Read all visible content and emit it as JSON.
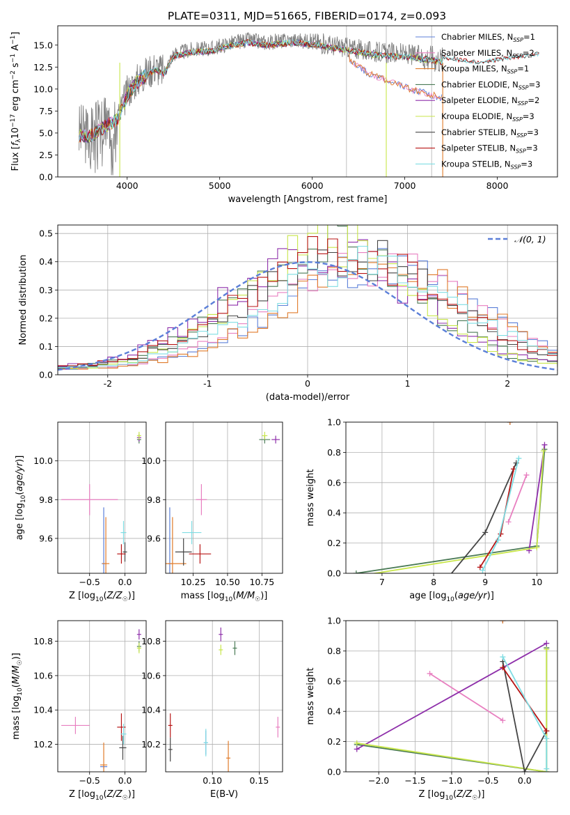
{
  "figure_title": "PLATE=0311, MJD=51665, FIBERID=0174, z=0.093",
  "colors": {
    "chabrier_miles": "#5b7fd8",
    "salpeter_miles": "#e87fc0",
    "kroupa_miles": "#e07b2a",
    "chabrier_elodie": "#4a7a55",
    "salpeter_elodie": "#8e2faa",
    "kroupa_elodie": "#c8e64a",
    "chabrier_stelib": "#444444",
    "salpeter_stelib": "#b81414",
    "kroupa_stelib": "#7fdde3",
    "data_spectrum": "#808080",
    "gaussian": "#5b7fd8"
  },
  "chart_data": [
    {
      "id": "spectrum",
      "type": "line",
      "xlabel": "wavelength [Angstrom, rest frame]",
      "ylabel": "Flux [f_λ10^-17 erg cm^-2 s^-1 A^-1]",
      "xlim": [
        3250,
        8650
      ],
      "ylim": [
        0,
        17.2
      ],
      "xticks": [
        4000,
        5000,
        6000,
        7000,
        8000
      ],
      "yticks": [
        0.0,
        2.5,
        5.0,
        7.5,
        10.0,
        12.5,
        15.0
      ],
      "ytick_labels": [
        "0.0",
        "2.5",
        "5.0",
        "7.5",
        "10.0",
        "12.5",
        "15.0"
      ],
      "grid": false,
      "legend_position": "top-right",
      "legend": [
        {
          "key": "chabrier_miles",
          "label": "Chabrier MILES, N",
          "sub": "SSP",
          "suffix": "=1"
        },
        {
          "key": "salpeter_miles",
          "label": "Salpeter MILES, N",
          "sub": "SSP",
          "suffix": "=2"
        },
        {
          "key": "kroupa_miles",
          "label": "Kroupa MILES, N",
          "sub": "SSP",
          "suffix": "=1"
        },
        {
          "key": "chabrier_elodie",
          "label": "Chabrier ELODIE, N",
          "sub": "SSP",
          "suffix": "=3"
        },
        {
          "key": "salpeter_elodie",
          "label": "Salpeter ELODIE, N",
          "sub": "SSP",
          "suffix": "=2"
        },
        {
          "key": "kroupa_elodie",
          "label": "Kroupa ELODIE, N",
          "sub": "SSP",
          "suffix": "=3"
        },
        {
          "key": "chabrier_stelib",
          "label": "Chabrier STELIB, N",
          "sub": "SSP",
          "suffix": "=3"
        },
        {
          "key": "salpeter_stelib",
          "label": "Salpeter STELIB, N",
          "sub": "SSP",
          "suffix": "=3"
        },
        {
          "key": "kroupa_stelib",
          "label": "Kroupa STELIB, N",
          "sub": "SSP",
          "suffix": "=3"
        }
      ],
      "continuum_knots": {
        "x": [
          3480,
          3600,
          3700,
          3800,
          3900,
          4000,
          4100,
          4200,
          4300,
          4400,
          4500,
          4700,
          4900,
          5100,
          5300,
          5500,
          5800,
          6000,
          6200,
          6400,
          6600,
          6800,
          7000,
          7200,
          7400
        ],
        "y": [
          5.0,
          4.9,
          5.6,
          6.3,
          6.8,
          9.6,
          11.0,
          11.8,
          12.5,
          12.0,
          14.0,
          14.5,
          14.6,
          15.2,
          15.6,
          15.3,
          15.6,
          15.4,
          15.0,
          14.7,
          14.3,
          14.1,
          14.0,
          13.7,
          13.4
        ]
      },
      "miles_red_knots": {
        "x": [
          6400,
          6600,
          6800,
          7000,
          7200,
          7400
        ],
        "y": [
          13.4,
          11.8,
          11.0,
          10.2,
          9.6,
          9.0
        ]
      },
      "data_range": [
        3480,
        7410
      ],
      "stelib_range": [
        3480,
        8450
      ],
      "vlines_x": [
        6370,
        6800,
        7290
      ]
    },
    {
      "id": "residuals",
      "type": "step-histogram",
      "xlabel": "(data-model)/error",
      "ylabel": "Normed distribution",
      "xlim": [
        -2.5,
        2.5
      ],
      "ylim": [
        0,
        0.53
      ],
      "xticks": [
        -2,
        -1,
        0,
        1,
        2
      ],
      "yticks": [
        0.0,
        0.1,
        0.2,
        0.3,
        0.4,
        0.5
      ],
      "ytick_labels": [
        "0.0",
        "0.1",
        "0.2",
        "0.3",
        "0.4",
        "0.5"
      ],
      "grid": true,
      "legend_position": "top-right",
      "legend": [
        {
          "label": "𝒩(0, 1)"
        }
      ],
      "gaussian": {
        "mu": 0,
        "sigma": 1
      },
      "hist_params": [
        {
          "key": "chabrier_miles",
          "mu": 0.7,
          "sigma": 0.98,
          "amp": 0.37,
          "seed": 11
        },
        {
          "key": "salpeter_miles",
          "mu": 0.65,
          "sigma": 0.98,
          "amp": 0.37,
          "seed": 12
        },
        {
          "key": "kroupa_miles",
          "mu": 0.72,
          "sigma": 0.98,
          "amp": 0.36,
          "seed": 13
        },
        {
          "key": "chabrier_elodie",
          "mu": 0.2,
          "sigma": 0.9,
          "amp": 0.43,
          "seed": 14
        },
        {
          "key": "salpeter_elodie",
          "mu": 0.15,
          "sigma": 0.95,
          "amp": 0.42,
          "seed": 15
        },
        {
          "key": "kroupa_elodie",
          "mu": 0.25,
          "sigma": 0.85,
          "amp": 0.45,
          "seed": 16
        },
        {
          "key": "chabrier_stelib",
          "mu": 0.4,
          "sigma": 1.0,
          "amp": 0.4,
          "seed": 17
        },
        {
          "key": "salpeter_stelib",
          "mu": 0.35,
          "sigma": 1.0,
          "amp": 0.41,
          "seed": 18
        },
        {
          "key": "kroupa_stelib",
          "mu": 0.5,
          "sigma": 0.98,
          "amp": 0.38,
          "seed": 19
        }
      ],
      "bin_width": 0.1
    },
    {
      "id": "age_vs_Z",
      "type": "errorbar",
      "xlabel": "Z [log10(Z/Z☉)]",
      "ylabel": "age [log10(age/yr)]",
      "xlim": [
        -0.95,
        0.3
      ],
      "ylim": [
        9.42,
        10.2
      ],
      "xticks": [
        -0.5,
        0.0
      ],
      "xtick_labels": [
        "−0.5",
        "0.0"
      ],
      "yticks": [
        9.6,
        9.8,
        10.0
      ],
      "ytick_labels": [
        "9.6",
        "9.8",
        "10.0"
      ],
      "grid": true,
      "points": [
        {
          "key": "chabrier_miles",
          "x": -0.3,
          "y": 9.47,
          "xerr": 0.0,
          "yerr": 0.29
        },
        {
          "key": "salpeter_miles",
          "x": -0.5,
          "y": 9.8,
          "xerr": 0.4,
          "yerr": 0.08
        },
        {
          "key": "kroupa_miles",
          "x": -0.27,
          "y": 9.47,
          "xerr": 0.05,
          "yerr": 0.24
        },
        {
          "key": "chabrier_elodie",
          "x": 0.2,
          "y": 10.11,
          "xerr": 0.02,
          "yerr": 0.02
        },
        {
          "key": "salpeter_elodie",
          "x": 0.2,
          "y": 10.12,
          "xerr": 0.02,
          "yerr": 0.02
        },
        {
          "key": "kroupa_elodie",
          "x": 0.2,
          "y": 10.13,
          "xerr": 0.02,
          "yerr": 0.02
        },
        {
          "key": "chabrier_stelib",
          "x": 0.0,
          "y": 9.53,
          "xerr": 0.03,
          "yerr": 0.05
        },
        {
          "key": "salpeter_stelib",
          "x": -0.05,
          "y": 9.52,
          "xerr": 0.06,
          "yerr": 0.05
        },
        {
          "key": "kroupa_stelib",
          "x": -0.02,
          "y": 9.63,
          "xerr": 0.04,
          "yerr": 0.06
        }
      ]
    },
    {
      "id": "age_vs_mass",
      "type": "errorbar",
      "xlabel": "mass [log10(M/M☉)]",
      "ylabel": "",
      "xlim": [
        10.05,
        10.9
      ],
      "ylim": [
        9.42,
        10.2
      ],
      "xticks": [
        10.25,
        10.5,
        10.75
      ],
      "xtick_labels": [
        "10.25",
        "10.50",
        "10.75"
      ],
      "yticks": [
        9.6,
        9.8,
        10.0
      ],
      "ytick_labels": [
        "9.6",
        "9.8",
        "10.0"
      ],
      "grid": true,
      "points": [
        {
          "key": "chabrier_miles",
          "x": 10.08,
          "y": 9.47,
          "xerr": 0.0,
          "yerr": 0.29
        },
        {
          "key": "salpeter_miles",
          "x": 10.31,
          "y": 9.8,
          "xerr": 0.04,
          "yerr": 0.08
        },
        {
          "key": "kroupa_miles",
          "x": 10.1,
          "y": 9.47,
          "xerr": 0.1,
          "yerr": 0.24
        },
        {
          "key": "chabrier_elodie",
          "x": 10.77,
          "y": 10.11,
          "xerr": 0.04,
          "yerr": 0.02
        },
        {
          "key": "salpeter_elodie",
          "x": 10.85,
          "y": 10.11,
          "xerr": 0.03,
          "yerr": 0.02
        },
        {
          "key": "kroupa_elodie",
          "x": 10.77,
          "y": 10.13,
          "xerr": 0.02,
          "yerr": 0.02
        },
        {
          "key": "chabrier_stelib",
          "x": 10.18,
          "y": 9.53,
          "xerr": 0.06,
          "yerr": 0.07
        },
        {
          "key": "salpeter_stelib",
          "x": 10.3,
          "y": 9.52,
          "xerr": 0.08,
          "yerr": 0.05
        },
        {
          "key": "kroupa_stelib",
          "x": 10.24,
          "y": 9.63,
          "xerr": 0.07,
          "yerr": 0.06
        }
      ]
    },
    {
      "id": "massweight_vs_age",
      "type": "line",
      "xlabel": "age [log10(age/yr)]",
      "ylabel": "mass weight",
      "xlim": [
        6.3,
        10.4
      ],
      "ylim": [
        0,
        1
      ],
      "xticks": [
        7,
        8,
        9,
        10
      ],
      "xtick_labels": [
        "7",
        "8",
        "9",
        "10"
      ],
      "yticks": [
        0.0,
        0.2,
        0.4,
        0.6,
        0.8,
        1.0
      ],
      "ytick_labels": [
        "0.0",
        "0.2",
        "0.4",
        "0.6",
        "0.8",
        "1.0"
      ],
      "grid": true,
      "series": [
        {
          "key": "chabrier_miles",
          "x": [
            9.48
          ],
          "y": [
            1.0
          ]
        },
        {
          "key": "salpeter_miles",
          "x": [
            9.45,
            9.8
          ],
          "y": [
            0.34,
            0.65
          ]
        },
        {
          "key": "kroupa_miles",
          "x": [
            9.48
          ],
          "y": [
            1.0
          ]
        },
        {
          "key": "chabrier_elodie",
          "x": [
            6.5,
            10.0,
            10.15
          ],
          "y": [
            0.0,
            0.18,
            0.82
          ]
        },
        {
          "key": "salpeter_elodie",
          "x": [
            9.85,
            10.15
          ],
          "y": [
            0.15,
            0.85
          ]
        },
        {
          "key": "kroupa_elodie",
          "x": [
            6.5,
            10.0,
            10.13
          ],
          "y": [
            -0.02,
            0.17,
            0.81
          ]
        },
        {
          "key": "chabrier_stelib",
          "x": [
            8.3,
            9.0,
            9.6
          ],
          "y": [
            -0.02,
            0.27,
            0.73
          ]
        },
        {
          "key": "salpeter_stelib",
          "x": [
            8.9,
            9.3,
            9.55
          ],
          "y": [
            0.04,
            0.26,
            0.69
          ]
        },
        {
          "key": "kroupa_stelib",
          "x": [
            8.95,
            9.25,
            9.65
          ],
          "y": [
            0.02,
            0.22,
            0.76
          ]
        }
      ]
    },
    {
      "id": "mass_vs_Z",
      "type": "errorbar",
      "xlabel": "Z [log10(Z/Z☉)]",
      "ylabel": "mass [log10(M/M☉)]",
      "xlim": [
        -0.95,
        0.3
      ],
      "ylim": [
        10.04,
        10.92
      ],
      "xticks": [
        -0.5,
        0.0
      ],
      "xtick_labels": [
        "−0.5",
        "0.0"
      ],
      "yticks": [
        10.2,
        10.4,
        10.6,
        10.8
      ],
      "ytick_labels": [
        "10.2",
        "10.4",
        "10.6",
        "10.8"
      ],
      "grid": true,
      "points": [
        {
          "key": "chabrier_miles",
          "x": -0.3,
          "y": 10.07,
          "xerr": 0.05,
          "yerr": 0.0
        },
        {
          "key": "salpeter_miles",
          "x": -0.7,
          "y": 10.31,
          "xerr": 0.2,
          "yerr": 0.05
        },
        {
          "key": "kroupa_miles",
          "x": -0.3,
          "y": 10.08,
          "xerr": 0.05,
          "yerr": 0.13
        },
        {
          "key": "chabrier_elodie",
          "x": 0.2,
          "y": 10.77,
          "xerr": 0.02,
          "yerr": 0.03
        },
        {
          "key": "salpeter_elodie",
          "x": 0.2,
          "y": 10.84,
          "xerr": 0.02,
          "yerr": 0.03
        },
        {
          "key": "kroupa_elodie",
          "x": 0.2,
          "y": 10.76,
          "xerr": 0.02,
          "yerr": 0.03
        },
        {
          "key": "chabrier_stelib",
          "x": -0.03,
          "y": 10.18,
          "xerr": 0.05,
          "yerr": 0.07
        },
        {
          "key": "salpeter_stelib",
          "x": -0.05,
          "y": 10.3,
          "xerr": 0.06,
          "yerr": 0.08
        },
        {
          "key": "kroupa_stelib",
          "x": -0.02,
          "y": 10.26,
          "xerr": 0.04,
          "yerr": 0.06
        }
      ]
    },
    {
      "id": "mass_vs_ebv",
      "type": "errorbar",
      "xlabel": "E(B-V)",
      "ylabel": "",
      "xlim": [
        0.05,
        0.175
      ],
      "ylim": [
        10.04,
        10.92
      ],
      "xticks": [
        0.1,
        0.15
      ],
      "xtick_labels": [
        "0.10",
        "0.15"
      ],
      "yticks": [
        10.2,
        10.4,
        10.6,
        10.8
      ],
      "ytick_labels": [
        "10.2",
        "10.4",
        "10.6",
        "10.8"
      ],
      "grid": true,
      "points": [
        {
          "key": "chabrier_miles",
          "x": 0.093,
          "y": 10.21,
          "xerr": 0.0,
          "yerr": 0.07
        },
        {
          "key": "salpeter_miles",
          "x": 0.17,
          "y": 10.3,
          "xerr": 0.0,
          "yerr": 0.06
        },
        {
          "key": "kroupa_miles",
          "x": 0.117,
          "y": 10.12,
          "xerr": 0.0,
          "yerr": 0.1
        },
        {
          "key": "chabrier_elodie",
          "x": 0.124,
          "y": 10.76,
          "xerr": 0.0,
          "yerr": 0.04
        },
        {
          "key": "salpeter_elodie",
          "x": 0.109,
          "y": 10.84,
          "xerr": 0.0,
          "yerr": 0.04
        },
        {
          "key": "kroupa_elodie",
          "x": 0.109,
          "y": 10.75,
          "xerr": 0.0,
          "yerr": 0.03
        },
        {
          "key": "chabrier_stelib",
          "x": 0.055,
          "y": 10.17,
          "xerr": 0.0,
          "yerr": 0.07
        },
        {
          "key": "salpeter_stelib",
          "x": 0.055,
          "y": 10.31,
          "xerr": 0.0,
          "yerr": 0.07
        },
        {
          "key": "kroupa_stelib",
          "x": 0.093,
          "y": 10.21,
          "xerr": 0.0,
          "yerr": 0.08
        }
      ]
    },
    {
      "id": "massweight_vs_Z",
      "type": "line",
      "xlabel": "Z [log10(Z/Z☉)]",
      "ylabel": "mass weight",
      "xlim": [
        -2.45,
        0.45
      ],
      "ylim": [
        0,
        1
      ],
      "xticks": [
        -2.0,
        -1.5,
        -1.0,
        -0.5,
        0.0
      ],
      "xtick_labels": [
        "−2.0",
        "−1.5",
        "−1.0",
        "−0.5",
        "0.0"
      ],
      "yticks": [
        0.0,
        0.2,
        0.4,
        0.6,
        0.8,
        1.0
      ],
      "ytick_labels": [
        "0.0",
        "0.2",
        "0.4",
        "0.6",
        "0.8",
        "1.0"
      ],
      "grid": true,
      "series": [
        {
          "key": "chabrier_miles",
          "x": [
            -0.3
          ],
          "y": [
            1.0
          ]
        },
        {
          "key": "salpeter_miles",
          "x": [
            -1.3,
            -0.3
          ],
          "y": [
            0.65,
            0.34
          ]
        },
        {
          "key": "kroupa_miles",
          "x": [
            -0.3
          ],
          "y": [
            1.0
          ]
        },
        {
          "key": "chabrier_elodie",
          "x": [
            -2.3,
            0.3,
            0.3
          ],
          "y": [
            0.18,
            0.0,
            0.82
          ]
        },
        {
          "key": "salpeter_elodie",
          "x": [
            -2.3,
            0.3
          ],
          "y": [
            0.15,
            0.85
          ]
        },
        {
          "key": "kroupa_elodie",
          "x": [
            -2.3,
            0.3,
            0.3
          ],
          "y": [
            0.19,
            0.0,
            0.81
          ]
        },
        {
          "key": "chabrier_stelib",
          "x": [
            -0.3,
            0.0,
            0.3
          ],
          "y": [
            0.73,
            0.0,
            0.27
          ]
        },
        {
          "key": "salpeter_stelib",
          "x": [
            -0.3,
            0.3
          ],
          "y": [
            0.69,
            0.27
          ]
        },
        {
          "key": "kroupa_stelib",
          "x": [
            -0.3,
            0.3,
            0.3
          ],
          "y": [
            0.76,
            0.22,
            0.02
          ]
        }
      ]
    }
  ]
}
